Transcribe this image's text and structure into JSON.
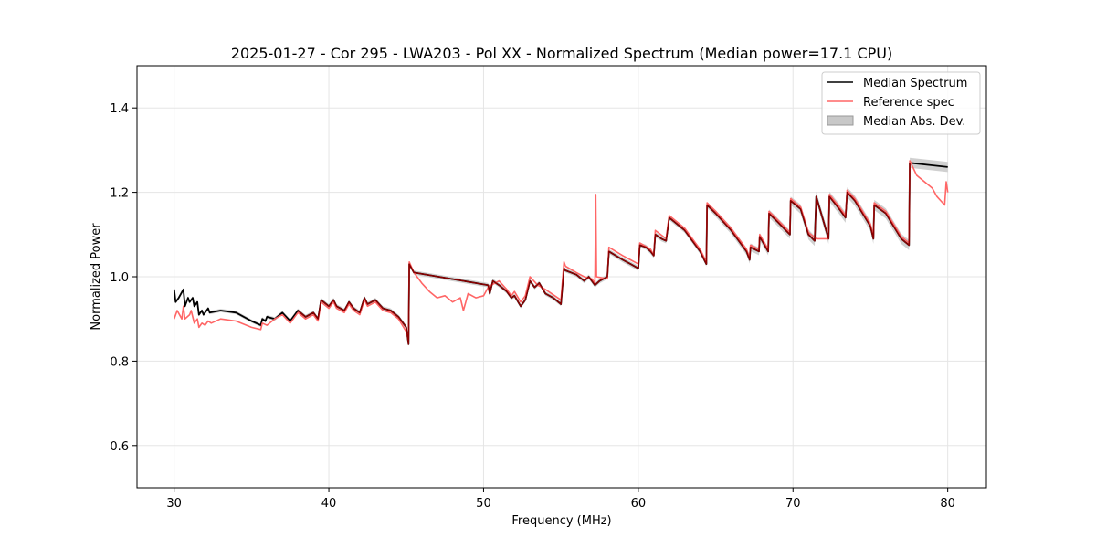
{
  "chart_data": {
    "type": "line",
    "title": "2025-01-27 - Cor 295 - LWA203 - Pol XX - Normalized Spectrum (Median power=17.1 CPU)",
    "xlabel": "Frequency (MHz)",
    "ylabel": "Normalized Power",
    "xlim": [
      27.6,
      82.5
    ],
    "ylim": [
      0.5,
      1.5
    ],
    "xticks": [
      30,
      40,
      50,
      60,
      70,
      80
    ],
    "yticks": [
      0.6,
      0.8,
      1.0,
      1.2,
      1.4
    ],
    "xtick_labels": [
      "30",
      "40",
      "50",
      "60",
      "70",
      "80"
    ],
    "ytick_labels": [
      "0.6",
      "0.8",
      "1.0",
      "1.2",
      "1.4"
    ],
    "grid": true,
    "legend_position": "top-right",
    "legend": [
      "Median Spectrum",
      "Reference spec",
      "Median Abs. Dev."
    ],
    "colors": {
      "median": "#000000",
      "reference": "#ff6666",
      "mad": "#c8c8c8",
      "overlap": "#8b0000"
    },
    "series": [
      {
        "name": "Median Spectrum",
        "x": [
          30.0,
          30.1,
          30.3,
          30.6,
          30.7,
          30.9,
          31.0,
          31.2,
          31.3,
          31.5,
          31.6,
          31.8,
          31.9,
          32.2,
          32.3,
          33.0,
          34.0,
          35.0,
          35.6,
          35.7,
          35.9,
          36.0,
          36.5,
          37.0,
          37.5,
          38.0,
          38.5,
          39.0,
          39.3,
          39.5,
          40.0,
          40.3,
          40.5,
          41.0,
          41.3,
          41.6,
          42.0,
          42.3,
          42.5,
          43.0,
          43.5,
          44.0,
          44.5,
          45.0,
          45.15,
          45.2,
          45.5,
          50.3,
          50.4,
          50.6,
          51.0,
          51.5,
          51.8,
          52.0,
          52.4,
          52.7,
          53.0,
          53.3,
          53.6,
          54.0,
          54.5,
          55.0,
          55.2,
          55.3,
          56.0,
          56.5,
          56.8,
          57.0,
          57.2,
          57.5,
          58.0,
          58.1,
          59.0,
          59.5,
          60.0,
          60.1,
          60.5,
          60.8,
          61.0,
          61.1,
          61.5,
          61.8,
          62.0,
          63.0,
          64.0,
          64.4,
          64.45,
          65.0,
          66.0,
          67.0,
          67.2,
          67.25,
          67.8,
          67.85,
          68.4,
          68.45,
          69.0,
          69.8,
          69.85,
          70.5,
          71.0,
          71.4,
          71.5,
          72.3,
          72.35,
          73.0,
          73.4,
          73.5,
          74.0,
          75.0,
          75.2,
          75.25,
          76.0,
          76.5,
          77.0,
          77.5,
          77.55,
          80.0
        ],
        "y": [
          0.97,
          0.94,
          0.95,
          0.97,
          0.93,
          0.95,
          0.94,
          0.95,
          0.93,
          0.94,
          0.91,
          0.92,
          0.91,
          0.925,
          0.915,
          0.92,
          0.915,
          0.895,
          0.885,
          0.9,
          0.895,
          0.905,
          0.9,
          0.915,
          0.895,
          0.92,
          0.905,
          0.915,
          0.9,
          0.945,
          0.93,
          0.945,
          0.93,
          0.92,
          0.94,
          0.925,
          0.915,
          0.95,
          0.935,
          0.945,
          0.925,
          0.92,
          0.905,
          0.88,
          0.84,
          1.03,
          1.01,
          0.98,
          0.96,
          0.99,
          0.98,
          0.965,
          0.95,
          0.955,
          0.93,
          0.945,
          0.99,
          0.975,
          0.985,
          0.96,
          0.95,
          0.935,
          1.02,
          1.015,
          1.005,
          0.99,
          1.0,
          0.99,
          0.98,
          0.99,
          1.0,
          1.06,
          1.04,
          1.03,
          1.02,
          1.075,
          1.07,
          1.06,
          1.05,
          1.1,
          1.09,
          1.085,
          1.14,
          1.11,
          1.06,
          1.03,
          1.17,
          1.15,
          1.11,
          1.06,
          1.04,
          1.07,
          1.06,
          1.095,
          1.06,
          1.15,
          1.13,
          1.1,
          1.18,
          1.16,
          1.1,
          1.085,
          1.19,
          1.09,
          1.19,
          1.16,
          1.14,
          1.2,
          1.18,
          1.12,
          1.09,
          1.17,
          1.15,
          1.12,
          1.09,
          1.075,
          1.27,
          1.26
        ]
      },
      {
        "name": "Reference spec",
        "x": [
          30.0,
          30.2,
          30.5,
          30.6,
          30.7,
          31.0,
          31.1,
          31.3,
          31.5,
          31.6,
          31.8,
          32.0,
          32.2,
          32.4,
          33.0,
          34.0,
          35.0,
          35.6,
          35.7,
          36.0,
          36.5,
          37.0,
          37.5,
          38.0,
          38.5,
          39.0,
          39.3,
          39.5,
          40.0,
          40.3,
          40.5,
          41.0,
          41.3,
          41.6,
          42.0,
          42.3,
          42.5,
          43.0,
          43.5,
          44.0,
          44.5,
          45.0,
          45.15,
          45.2,
          45.5,
          46.0,
          46.5,
          47.0,
          47.5,
          48.0,
          48.5,
          48.7,
          49.0,
          49.5,
          50.0,
          50.3,
          50.5,
          51.0,
          51.5,
          51.8,
          52.0,
          52.4,
          52.7,
          53.0,
          53.5,
          54.0,
          55.0,
          55.2,
          55.3,
          56.0,
          56.5,
          57.0,
          57.2,
          57.25,
          57.3,
          58.0,
          58.1,
          59.0,
          59.5,
          60.0,
          60.1,
          60.8,
          61.0,
          61.1,
          61.8,
          62.0,
          63.0,
          64.0,
          64.4,
          64.45,
          65.0,
          66.0,
          67.0,
          67.2,
          67.25,
          67.8,
          67.85,
          68.4,
          68.45,
          69.0,
          69.8,
          69.85,
          70.5,
          71.0,
          71.5,
          72.3,
          72.35,
          73.0,
          73.4,
          73.5,
          74.0,
          75.0,
          75.2,
          75.25,
          76.0,
          76.5,
          77.0,
          77.5,
          77.55,
          78.0,
          79.0,
          79.3,
          79.8,
          79.9,
          80.0
        ],
        "y": [
          0.9,
          0.92,
          0.9,
          0.93,
          0.9,
          0.91,
          0.92,
          0.89,
          0.9,
          0.88,
          0.89,
          0.885,
          0.895,
          0.89,
          0.9,
          0.895,
          0.88,
          0.875,
          0.89,
          0.885,
          0.9,
          0.91,
          0.89,
          0.915,
          0.9,
          0.91,
          0.895,
          0.94,
          0.925,
          0.94,
          0.925,
          0.915,
          0.935,
          0.92,
          0.91,
          0.945,
          0.93,
          0.94,
          0.92,
          0.915,
          0.9,
          0.87,
          0.85,
          1.035,
          1.01,
          0.985,
          0.965,
          0.95,
          0.955,
          0.94,
          0.95,
          0.92,
          0.96,
          0.95,
          0.955,
          0.975,
          0.98,
          0.99,
          0.97,
          0.955,
          0.965,
          0.94,
          0.955,
          1.0,
          0.98,
          0.97,
          0.945,
          1.035,
          1.025,
          1.01,
          1.0,
          0.995,
          0.985,
          1.195,
          1.0,
          0.995,
          1.07,
          1.05,
          1.04,
          1.03,
          1.08,
          1.065,
          1.05,
          1.11,
          1.09,
          1.145,
          1.115,
          1.065,
          1.035,
          1.175,
          1.155,
          1.115,
          1.065,
          1.045,
          1.075,
          1.065,
          1.1,
          1.065,
          1.155,
          1.135,
          1.105,
          1.185,
          1.165,
          1.105,
          1.09,
          1.09,
          1.195,
          1.165,
          1.145,
          1.205,
          1.185,
          1.125,
          1.095,
          1.175,
          1.155,
          1.125,
          1.095,
          1.08,
          1.275,
          1.24,
          1.21,
          1.19,
          1.17,
          1.225,
          1.2
        ]
      },
      {
        "name": "Median Abs. Dev.",
        "x": [
          30.0,
          35.0,
          40.0,
          45.0,
          50.0,
          55.0,
          60.0,
          64.4,
          65.0,
          70.0,
          71.0,
          75.0,
          77.5
        ],
        "y": [
          0.004,
          0.004,
          0.005,
          0.005,
          0.005,
          0.005,
          0.006,
          0.006,
          0.008,
          0.01,
          0.012,
          0.012,
          0.012
        ]
      }
    ]
  }
}
